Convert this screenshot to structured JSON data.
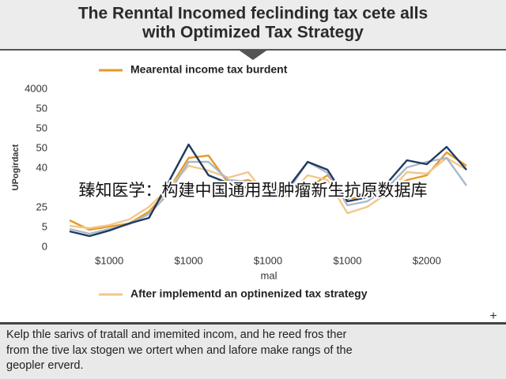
{
  "chart_data": {
    "type": "line",
    "title": [
      "The Renntal Incomed feclinding tax cete alls",
      "with Optimized Tax Strategy"
    ],
    "y_label": "UPogirdact",
    "x_label": "mal",
    "overlay_text": "臻知医学：构建中国通用型肿瘤新生抗原数据库",
    "description": [
      "Kelp thle sarivs of tratall and imemited incom, and he reed fros ther",
      "from the tive lax stogen we ortert when and lafore make rangs of the",
      "geopler erverd."
    ],
    "corner_mark": "+",
    "x": [
      0,
      1,
      2,
      3,
      4,
      5,
      6,
      7,
      8,
      9,
      10,
      11,
      12,
      13,
      14,
      15,
      16,
      17,
      18,
      19,
      20
    ],
    "xlim": [
      0,
      20
    ],
    "xticks": [
      {
        "value": 2,
        "label": "$1000"
      },
      {
        "value": 6,
        "label": "$1000"
      },
      {
        "value": 10,
        "label": "$1000"
      },
      {
        "value": 14,
        "label": "$1000"
      },
      {
        "value": 18,
        "label": "$2000"
      }
    ],
    "ylim": [
      0,
      80
    ],
    "yticks": [
      0,
      {
        "value": 10,
        "label": "5"
      },
      {
        "value": 20,
        "label": "25"
      },
      40,
      50,
      {
        "value": 60,
        "label": "50"
      },
      {
        "value": 70,
        "label": "50"
      },
      {
        "value": 80,
        "label": "4000"
      }
    ],
    "grid": false,
    "series": [
      {
        "name": "Mearental income tax burdent",
        "color": "#e59a2b",
        "values": [
          13.6,
          8.8,
          10.4,
          12,
          18,
          29.2,
          45.2,
          46.4,
          32.4,
          34,
          30,
          27.2,
          30,
          36.4,
          24.4,
          26,
          28.4,
          34,
          36.4,
          48,
          41.2
        ]
      },
      {
        "name": "After implementd an optinenized tax strategy",
        "color": "#f2c78a",
        "values": [
          10.8,
          9.6,
          11.2,
          14,
          20.4,
          30,
          41.2,
          38.8,
          35.2,
          38,
          25.2,
          26,
          36.4,
          34,
          17.2,
          20.4,
          27.2,
          38,
          37.2,
          45.2,
          39.2
        ]
      },
      {
        "color": "#a9b9c9",
        "values": [
          9.2,
          6.8,
          9.2,
          11.6,
          16.8,
          27.2,
          43.2,
          43.2,
          34,
          33.2,
          27.2,
          28.4,
          43.2,
          37.6,
          21.2,
          23.2,
          30,
          40.4,
          43.2,
          45.2,
          31.2
        ]
      },
      {
        "color": "#1f3a5f",
        "values": [
          8,
          5.6,
          8.4,
          12,
          14.8,
          33.2,
          52,
          36.4,
          32.4,
          30,
          29.2,
          30,
          43.2,
          39.2,
          23.2,
          25.2,
          32.4,
          44,
          42,
          50.8,
          39.2
        ]
      }
    ]
  }
}
